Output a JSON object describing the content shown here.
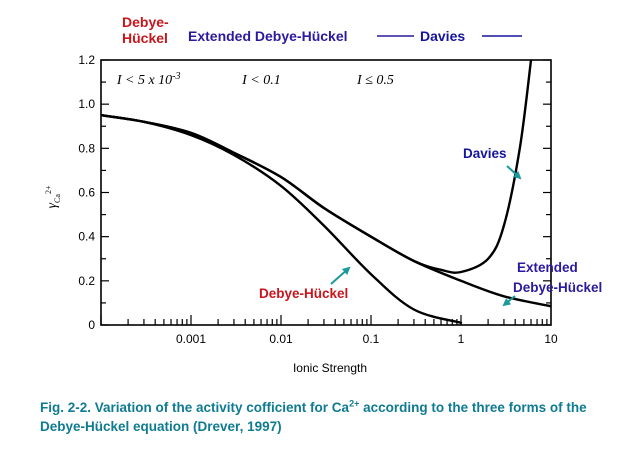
{
  "header": {
    "dh_line1": "Debye-",
    "dh_line2": "Hückel",
    "extended": "Extended Debye-Hückel",
    "davies": "Davies"
  },
  "colors": {
    "debye_huckel": "#c8161d",
    "extended": "#2a1a9e",
    "davies": "#14149e",
    "arrow": "#1a9a9a",
    "caption": "#0f7b92",
    "curve": "#000000"
  },
  "caption": {
    "prefix": "Fig. 2-2. Variation of the activity cofficient for Ca",
    "superscript": "2+",
    "suffix": " according to the three forms of the Debye-Hückel equation (Drever, 1997)"
  },
  "chart_data": {
    "type": "line",
    "xlabel": "Ionic Strength",
    "ylabel_symbol": "γ",
    "ylabel_subscript": "Ca",
    "ylabel_superscript": "2+",
    "xscale": "log",
    "xlim": [
      0.0001,
      10
    ],
    "ylim": [
      0,
      1.2
    ],
    "xticks": [
      {
        "value": 0.001,
        "label": "0.001"
      },
      {
        "value": 0.01,
        "label": "0.01"
      },
      {
        "value": 0.1,
        "label": "0.1"
      },
      {
        "value": 1,
        "label": "1"
      },
      {
        "value": 10,
        "label": "10"
      }
    ],
    "yticks": [
      {
        "value": 0,
        "label": "0"
      },
      {
        "value": 0.2,
        "label": "0.2"
      },
      {
        "value": 0.4,
        "label": "0.4"
      },
      {
        "value": 0.6,
        "label": "0.6"
      },
      {
        "value": 0.8,
        "label": "0.8"
      },
      {
        "value": 1.0,
        "label": "1.0"
      },
      {
        "value": 1.2,
        "label": "1.2"
      }
    ],
    "range_labels": [
      {
        "text": "I < 5 x 10-3",
        "x": 0.00015
      },
      {
        "text": "I < 0.1",
        "x": 0.0037
      },
      {
        "text": "I ≤ 0.5",
        "x": 0.07
      }
    ],
    "series": [
      {
        "name": "Debye-Hückel",
        "x": [
          0.0001,
          0.0003,
          0.001,
          0.003,
          0.01,
          0.03,
          0.1,
          0.3,
          1
        ],
        "y": [
          0.95,
          0.92,
          0.86,
          0.77,
          0.63,
          0.45,
          0.23,
          0.07,
          0.01
        ]
      },
      {
        "name": "Extended Debye-Hückel",
        "x": [
          0.0001,
          0.0003,
          0.001,
          0.003,
          0.01,
          0.03,
          0.1,
          0.3,
          1,
          3,
          10
        ],
        "y": [
          0.95,
          0.92,
          0.87,
          0.78,
          0.67,
          0.53,
          0.4,
          0.29,
          0.2,
          0.13,
          0.085
        ]
      },
      {
        "name": "Davies",
        "x": [
          0.0001,
          0.0003,
          0.001,
          0.003,
          0.01,
          0.03,
          0.1,
          0.3,
          0.6,
          1,
          2,
          3,
          4.5,
          6
        ],
        "y": [
          0.95,
          0.92,
          0.87,
          0.78,
          0.67,
          0.53,
          0.4,
          0.29,
          0.25,
          0.24,
          0.3,
          0.45,
          0.8,
          1.2
        ]
      }
    ],
    "annotations": [
      {
        "text": "Davies",
        "series": "Davies"
      },
      {
        "text": "Extended",
        "series": "Extended Debye-Hückel"
      },
      {
        "text": "Debye-Hückel",
        "series": "Extended Debye-Hückel"
      },
      {
        "text": "Debye-Hückel",
        "series": "Debye-Hückel"
      }
    ]
  }
}
